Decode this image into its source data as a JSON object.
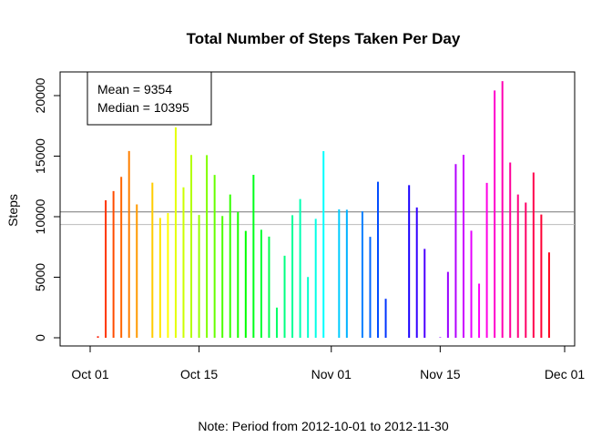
{
  "chart_data": {
    "type": "bar",
    "title": "Total Number of Steps Taken Per Day",
    "ylabel": "Steps",
    "xlabel": "",
    "note": "Note: Period from 2012-10-01 to 2012-11-30",
    "x_ticks": [
      {
        "date": "2012-10-01",
        "label": "Oct 01"
      },
      {
        "date": "2012-10-15",
        "label": "Oct 15"
      },
      {
        "date": "2012-11-01",
        "label": "Nov 01"
      },
      {
        "date": "2012-11-15",
        "label": "Nov 15"
      },
      {
        "date": "2012-12-01",
        "label": "Dec 01"
      }
    ],
    "y_ticks": [
      0,
      5000,
      10000,
      15000,
      20000
    ],
    "y_tick_labels": [
      "0",
      "5000",
      "10000",
      "15000",
      "20000"
    ],
    "ylim": [
      0,
      21300
    ],
    "xlim": [
      "2012-10-01",
      "2012-12-01"
    ],
    "mean": 9354,
    "median": 10395,
    "legend": {
      "position": "top-left",
      "lines": [
        "Mean = 9354",
        "Median = 10395"
      ]
    },
    "reference_lines": [
      {
        "value": 10395,
        "color": "#777777"
      },
      {
        "value": 9354,
        "color": "#bbbbbb"
      }
    ],
    "dates": [
      "2012-10-01",
      "2012-10-02",
      "2012-10-03",
      "2012-10-04",
      "2012-10-05",
      "2012-10-06",
      "2012-10-07",
      "2012-10-08",
      "2012-10-09",
      "2012-10-10",
      "2012-10-11",
      "2012-10-12",
      "2012-10-13",
      "2012-10-14",
      "2012-10-15",
      "2012-10-16",
      "2012-10-17",
      "2012-10-18",
      "2012-10-19",
      "2012-10-20",
      "2012-10-21",
      "2012-10-22",
      "2012-10-23",
      "2012-10-24",
      "2012-10-25",
      "2012-10-26",
      "2012-10-27",
      "2012-10-28",
      "2012-10-29",
      "2012-10-30",
      "2012-10-31",
      "2012-11-01",
      "2012-11-02",
      "2012-11-03",
      "2012-11-04",
      "2012-11-05",
      "2012-11-06",
      "2012-11-07",
      "2012-11-08",
      "2012-11-09",
      "2012-11-10",
      "2012-11-11",
      "2012-11-12",
      "2012-11-13",
      "2012-11-14",
      "2012-11-15",
      "2012-11-16",
      "2012-11-17",
      "2012-11-18",
      "2012-11-19",
      "2012-11-20",
      "2012-11-21",
      "2012-11-22",
      "2012-11-23",
      "2012-11-24",
      "2012-11-25",
      "2012-11-26",
      "2012-11-27",
      "2012-11-28",
      "2012-11-29",
      "2012-11-30"
    ],
    "values": [
      0,
      126,
      11352,
      12116,
      13294,
      15420,
      11015,
      0,
      12811,
      9900,
      10304,
      17382,
      12426,
      15098,
      10139,
      15084,
      13452,
      10056,
      11829,
      10395,
      8821,
      13460,
      8918,
      8355,
      2492,
      6778,
      10119,
      11458,
      5018,
      9819,
      15414,
      0,
      10600,
      10571,
      0,
      10439,
      8334,
      12883,
      3219,
      0,
      0,
      12608,
      10765,
      7336,
      0,
      41,
      5441,
      14339,
      15110,
      8841,
      4472,
      12787,
      20427,
      21194,
      14478,
      11834,
      11162,
      13646,
      10183,
      7047,
      0
    ],
    "colors": [
      "#ff0000",
      "#ff1900",
      "#ff3300",
      "#ff4c00",
      "#ff6600",
      "#ff7f00",
      "#ff9900",
      "#ffb200",
      "#ffcc00",
      "#ffe500",
      "#ffff00",
      "#e5ff00",
      "#ccff00",
      "#b2ff00",
      "#99ff00",
      "#80ff00",
      "#66ff00",
      "#4cff00",
      "#33ff00",
      "#19ff00",
      "#00ff00",
      "#00ff19",
      "#00ff33",
      "#00ff4c",
      "#00ff66",
      "#00ff80",
      "#00ff99",
      "#00ffb2",
      "#00ffcc",
      "#00ffe5",
      "#00ffff",
      "#00e5ff",
      "#00ccff",
      "#00b2ff",
      "#0099ff",
      "#0080ff",
      "#0066ff",
      "#004cff",
      "#0033ff",
      "#0019ff",
      "#0000ff",
      "#1900ff",
      "#3300ff",
      "#4c00ff",
      "#6600ff",
      "#8000ff",
      "#9900ff",
      "#b200ff",
      "#cc00ff",
      "#e500ff",
      "#ff00ff",
      "#ff00e5",
      "#ff00cc",
      "#ff00b2",
      "#ff0099",
      "#ff0080",
      "#ff0066",
      "#ff004c",
      "#ff0033",
      "#ff0019",
      "#ff0000"
    ]
  }
}
